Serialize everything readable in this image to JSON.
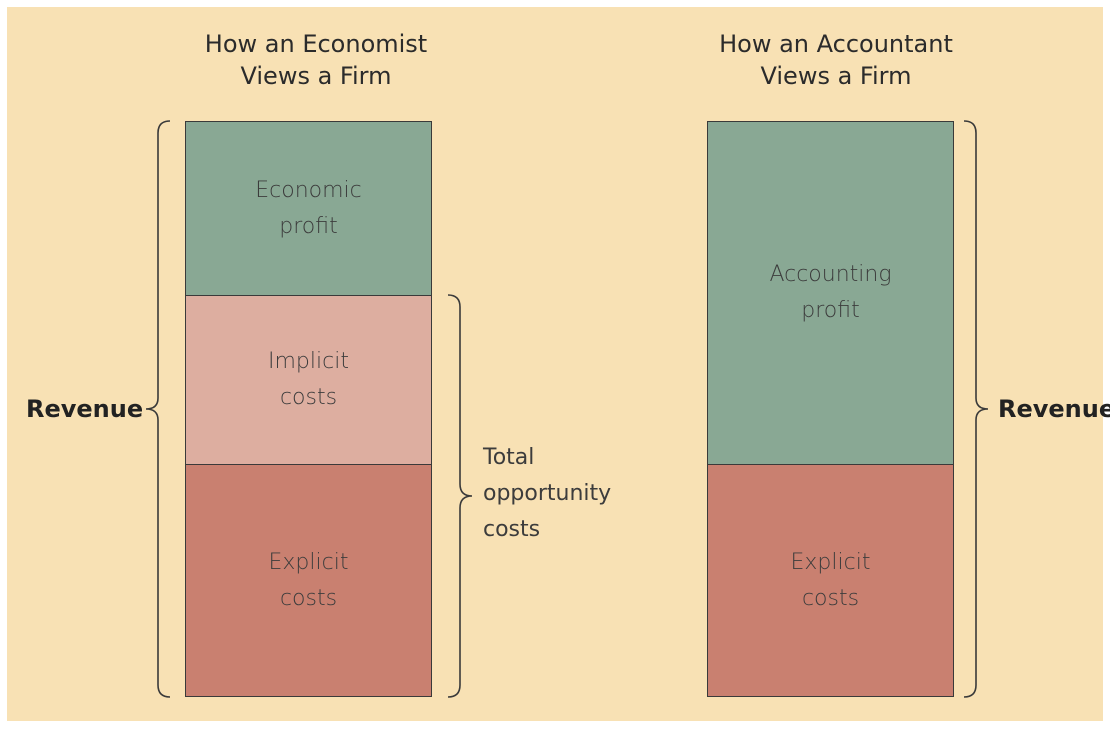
{
  "colors": {
    "background": "#f8e1b4",
    "profit": "#89a894",
    "implicit_costs": "#ddaea0",
    "explicit_costs": "#c98070",
    "border": "#3a3a3a"
  },
  "economist": {
    "title_line1": "How an Economist",
    "title_line2": "Views a Firm",
    "blocks": [
      {
        "line1": "Economic",
        "line2": "profit"
      },
      {
        "line1": "Implicit",
        "line2": "costs"
      },
      {
        "line1": "Explicit",
        "line2": "costs"
      }
    ],
    "revenue_label": "Revenue",
    "opportunity_label_line1": "Total",
    "opportunity_label_line2": "opportunity",
    "opportunity_label_line3": "costs"
  },
  "accountant": {
    "title_line1": "How an Accountant",
    "title_line2": "Views a Firm",
    "blocks": [
      {
        "line1": "Accounting",
        "line2": "profit"
      },
      {
        "line1": "Explicit",
        "line2": "costs"
      }
    ],
    "revenue_label": "Revenue"
  }
}
